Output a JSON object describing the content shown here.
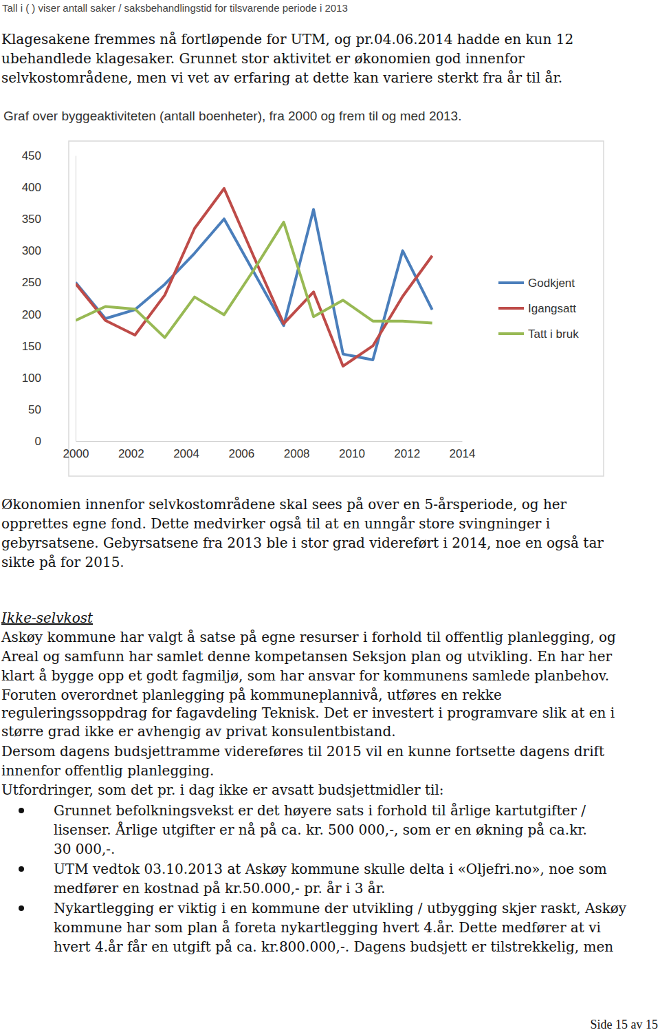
{
  "header": "Tall i ( ) viser antall saker / saksbehandlingstid for tilsvarende periode i 2013",
  "body_top": [
    "Klagesakene fremmes nå fortløpende for UTM, og pr.04.06.2014 hadde en kun 12",
    "ubehandlede klagesaker. Grunnet stor aktivitet er økonomien god innenfor",
    "selvkostområdene, men vi vet av erfaring at dette kan variere sterkt fra år til år."
  ],
  "chart_data": {
    "type": "line",
    "title": "Graf over byggeaktiviteten (antall boenheter), fra 2000 og frem til og med 2013.",
    "x": [
      2000,
      2001.08,
      2002.15,
      2003.23,
      2004.31,
      2005.38,
      2006.46,
      2007.54,
      2008.62,
      2009.69,
      2010.77,
      2011.85,
      2012.92
    ],
    "xlim": [
      2000,
      2014
    ],
    "xticks": [
      2000,
      2002,
      2004,
      2006,
      2008,
      2010,
      2012,
      2014
    ],
    "ylim": [
      0,
      450
    ],
    "yticks": [
      0,
      50,
      100,
      150,
      200,
      250,
      300,
      350,
      400,
      450
    ],
    "grid": false,
    "legend": "right",
    "series": [
      {
        "name": "Godkjent",
        "color": "#4a7ebb",
        "values": [
          250,
          193,
          207,
          247,
          296,
          350,
          266,
          182,
          365,
          137,
          128,
          300,
          207
        ]
      },
      {
        "name": "Igangsatt",
        "color": "#be4b48",
        "values": [
          248,
          190,
          167,
          230,
          335,
          398,
          290,
          185,
          235,
          118,
          150,
          228,
          292
        ]
      },
      {
        "name": "Tatt i bruk",
        "color": "#98b954",
        "values": [
          190,
          212,
          208,
          163,
          227,
          199,
          270,
          345,
          196,
          222,
          189,
          189,
          186
        ]
      }
    ]
  },
  "body_middle": [
    "Økonomien innenfor selvkostområdene skal sees på over en 5-årsperiode, og her",
    "opprettes egne fond. Dette medvirker også til at en unngår store svingninger i",
    "gebyrsatsene. Gebyrsatsene fra 2013 ble i stor grad videreført i 2014, noe en også tar",
    "sikte på for 2015."
  ],
  "heading": "Ikke-selvkost",
  "body_bottom": [
    "Askøy kommune har valgt å satse på egne resurser i forhold til offentlig planlegging, og",
    "Areal og samfunn har samlet denne kompetansen Seksjon plan og utvikling. En har her",
    "klart å bygge opp et godt fagmiljø, som har ansvar for kommunens samlede planbehov.",
    "Foruten overordnet planlegging på kommuneplannivå, utføres en rekke",
    "reguleringssoppdrag for fagavdeling Teknisk.  Det er investert i programvare slik at en i",
    "større grad ikke er avhengig av privat konsulentbistand.",
    "Dersom dagens budsjettramme videreføres til 2015 vil en kunne fortsette dagens drift",
    "innenfor offentlig planlegging.",
    "Utfordringer, som det pr. i dag ikke er avsatt budsjettmidler til:"
  ],
  "bullets": [
    [
      "Grunnet befolkningsvekst er det høyere sats i forhold til årlige kartutgifter /",
      "lisenser. Årlige utgifter er nå på ca. kr. 500 000,-, som er en økning på ca.kr.",
      "30 000,-."
    ],
    [
      "UTM vedtok 03.10.2013 at Askøy kommune skulle delta i «Oljefri.no», noe som",
      "medfører en kostnad på kr.50.000,- pr. år i 3 år."
    ],
    [
      "Nykartlegging er viktig i en kommune der utvikling / utbygging skjer raskt, Askøy",
      "kommune har som plan å foreta nykartlegging hvert 4.år. Dette medfører at vi",
      "hvert 4.år får en utgift på ca. kr.800.000,-.  Dagens budsjett er tilstrekkelig, men"
    ]
  ],
  "footer": "Side 15 av 15"
}
